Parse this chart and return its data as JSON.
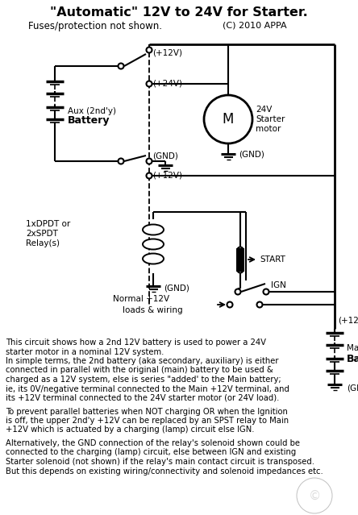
{
  "title": "\"Automatic\" 12V to 24V for Starter.",
  "subtitle": "Fuses/protection not shown.",
  "copyright": "(C) 2010 APPA",
  "bg": "#ffffff",
  "lc": "#000000",
  "desc_lines": [
    "This circuit shows how a 2nd 12V battery is used to power a 24V",
    "starter motor in a nominal 12V system.",
    "In simple terms, the 2nd battery (aka secondary, auxiliary) is either",
    "connected in parallel with the original (main) battery to be used &",
    "charged as a 12V system, else is series \"added' to the Main battery;",
    "ie, its 0V/negative terminal connected to the Main +12V terminal, and",
    "its +12V terminal connected to the 24V starter motor (or 24V load).",
    " ",
    "To prevent parallel batteries when NOT charging OR when the Ignition",
    "is off, the upper 2nd'y +12V can be replaced by an SPST relay to Main",
    "+12V which is actuated by a charging (lamp) circuit else IGN.",
    " ",
    "Alternatively, the GND connection of the relay's solenoid shown could be",
    "connected to the charging (lamp) circuit, else between IGN and existing",
    "Starter solenoid (not shown) if the relay's main contact circuit is transposed.",
    "But this depends on existing wiring/connectivity and solenoid impedances etc."
  ]
}
